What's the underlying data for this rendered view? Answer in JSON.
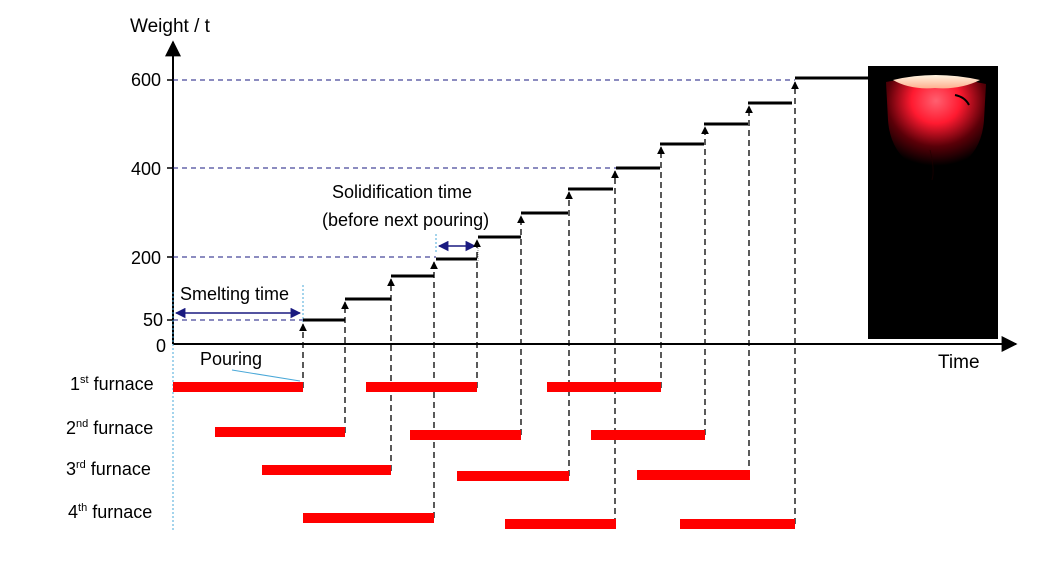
{
  "axes": {
    "y_label": "Weight / t",
    "x_label": "Time",
    "y_ticks": [
      "600",
      "400",
      "200",
      "50",
      "0"
    ]
  },
  "annotations": {
    "smelting_time": "Smelting time",
    "pouring": "Pouring",
    "solidification_line1": "Solidification time",
    "solidification_line2": "(before next pouring)"
  },
  "furnaces": [
    {
      "num": "1",
      "sup": "st",
      "rest": " furnace"
    },
    {
      "num": "2",
      "sup": "nd",
      "rest": " furnace"
    },
    {
      "num": "3",
      "sup": "rd",
      "rest": " furnace"
    },
    {
      "num": "4",
      "sup": "th",
      "rest": " furnace"
    }
  ],
  "colors": {
    "furnace_bar": "#ff0000",
    "guide_line": "#1a1a80",
    "arrow": "#1a1a80",
    "photo_bg": "#000000",
    "photo_glow": "#ff2a3a"
  },
  "photo": {
    "icon": "molten-ingot-photo"
  }
}
